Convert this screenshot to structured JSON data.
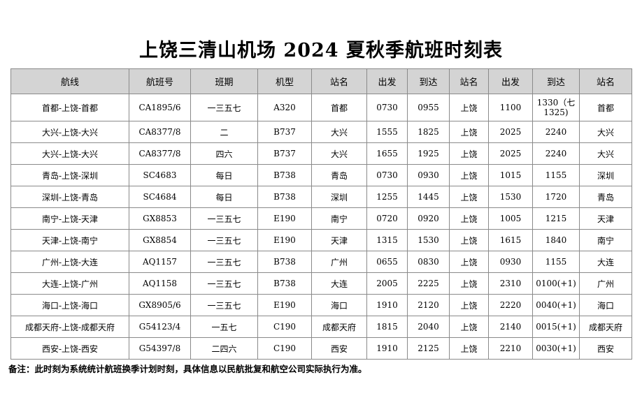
{
  "title": "上饶三清山机场 2024 夏秋季航班时刻表",
  "table": {
    "headers": [
      "航线",
      "航班号",
      "班期",
      "机型",
      "站名",
      "出发",
      "到达",
      "站名",
      "出发",
      "到达",
      "站名"
    ],
    "rows": [
      [
        "首都-上饶-首都",
        "CA1895/6",
        "一三五七",
        "A320",
        "首都",
        "0730",
        "0955",
        "上饶",
        "1100",
        "1330（七1325)",
        "首都"
      ],
      [
        "大兴-上饶-大兴",
        "CA8377/8",
        "二",
        "B737",
        "大兴",
        "1555",
        "1825",
        "上饶",
        "2025",
        "2240",
        "大兴"
      ],
      [
        "大兴-上饶-大兴",
        "CA8377/8",
        "四六",
        "B737",
        "大兴",
        "1655",
        "1925",
        "上饶",
        "2025",
        "2240",
        "大兴"
      ],
      [
        "青岛-上饶-深圳",
        "SC4683",
        "每日",
        "B738",
        "青岛",
        "0730",
        "0930",
        "上饶",
        "1015",
        "1155",
        "深圳"
      ],
      [
        "深圳-上饶-青岛",
        "SC4684",
        "每日",
        "B738",
        "深圳",
        "1255",
        "1445",
        "上饶",
        "1530",
        "1720",
        "青岛"
      ],
      [
        "南宁-上饶-天津",
        "GX8853",
        "一三五七",
        "E190",
        "南宁",
        "0720",
        "0920",
        "上饶",
        "1005",
        "1215",
        "天津"
      ],
      [
        "天津-上饶-南宁",
        "GX8854",
        "一三五七",
        "E190",
        "天津",
        "1315",
        "1530",
        "上饶",
        "1615",
        "1840",
        "南宁"
      ],
      [
        "广州-上饶-大连",
        "AQ1157",
        "一三五七",
        "B738",
        "广州",
        "0655",
        "0830",
        "上饶",
        "0930",
        "1155",
        "大连"
      ],
      [
        "大连-上饶-广州",
        "AQ1158",
        "一三五七",
        "B738",
        "大连",
        "2005",
        "2225",
        "上饶",
        "2310",
        "0100(+1)",
        "广州"
      ],
      [
        "海口-上饶-海口",
        "GX8905/6",
        "一三五七",
        "E190",
        "海口",
        "1910",
        "2120",
        "上饶",
        "2220",
        "0040(+1)",
        "海口"
      ],
      [
        "成都天府-上饶-成都天府",
        "G54123/4",
        "一五七",
        "C190",
        "成都天府",
        "1815",
        "2040",
        "上饶",
        "2140",
        "0015(+1)",
        "成都天府"
      ],
      [
        "西安-上饶-西安",
        "G54397/8",
        "二四六",
        "C190",
        "西安",
        "1910",
        "2125",
        "上饶",
        "2210",
        "0030(+1)",
        "西安"
      ]
    ]
  },
  "note": "备注：此时刻为系统统计航班换季计划时刻，具体信息以民航批复和航空公司实际执行为准。"
}
